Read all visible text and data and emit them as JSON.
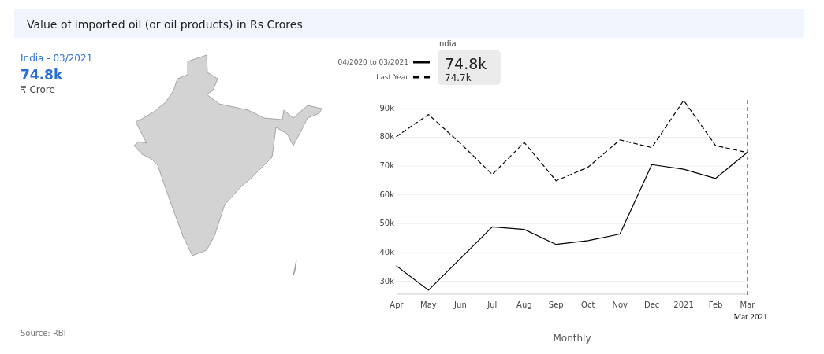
{
  "chart_data": {
    "type": "line",
    "title": "Value of imported oil (or oil products) in Rs Crores",
    "categories": [
      "Apr",
      "May",
      "Jun",
      "Jul",
      "Aug",
      "Sep",
      "Oct",
      "Nov",
      "Dec",
      "2021",
      "Feb",
      "Mar"
    ],
    "series": [
      {
        "name": "04/2020 to 03/2021",
        "color": "#000000",
        "line_style": "solid",
        "values": [
          35300,
          26900,
          37900,
          48900,
          48000,
          42800,
          44100,
          46400,
          70500,
          68900,
          65700,
          74800
        ]
      },
      {
        "name": "Last Year",
        "color": "#000000",
        "line_style": "dashed",
        "values": [
          80300,
          87900,
          77900,
          67100,
          78200,
          64900,
          69600,
          79100,
          76400,
          92800,
          77100,
          74700
        ]
      }
    ],
    "ylim": [
      25500,
      93000
    ],
    "yticks": [
      {
        "value": 30000,
        "label": "30k"
      },
      {
        "value": 40000,
        "label": "40k"
      },
      {
        "value": 50000,
        "label": "50k"
      },
      {
        "value": 60000,
        "label": "60k"
      },
      {
        "value": 70000,
        "label": "70k"
      },
      {
        "value": 80000,
        "label": "80k"
      },
      {
        "value": 90000,
        "label": "90k"
      }
    ],
    "xlabel": "Monthly",
    "legend_title": "India",
    "legend": "top",
    "grid": "y",
    "ref_lines": [
      {
        "axis": "x",
        "value": "Mar",
        "label": "Mar 2021",
        "color": "#555555",
        "line_style": "dashed"
      }
    ],
    "annotations": [
      "India - 03/2021",
      "74.8k",
      "₹ Crore",
      "74.8k",
      "74.7k",
      "Source: RBI"
    ]
  }
}
